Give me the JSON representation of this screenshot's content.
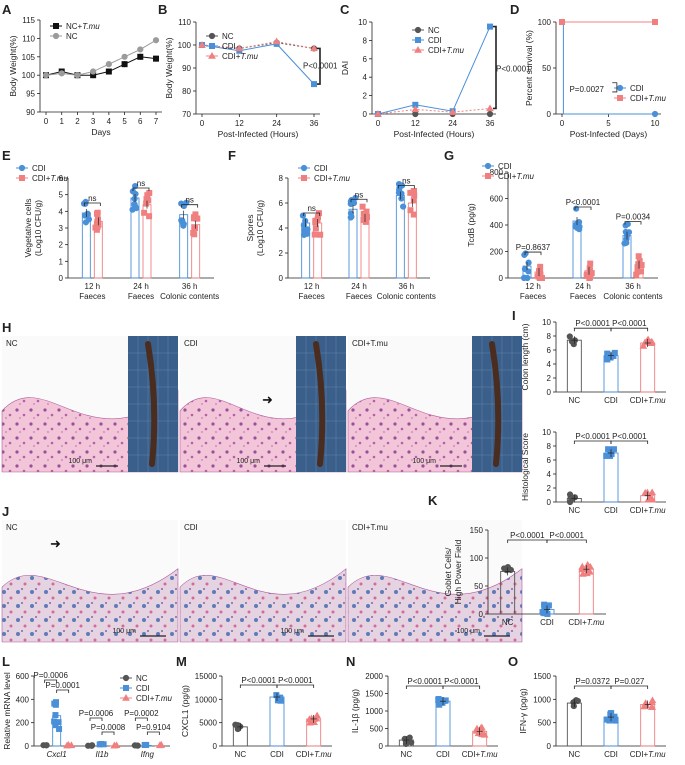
{
  "colors": {
    "nc": "#555555",
    "nc_light": "#9b9b9b",
    "cdi": "#4a90d9",
    "tmu": "#f08080",
    "pval": "#1a1a1a"
  },
  "panels": {
    "A": {
      "letter": "A",
      "ylabel": "Body Weight(%)",
      "xlabel": "Days",
      "legend": [
        "NC+T.mu",
        "NC"
      ],
      "chart_data": {
        "type": "line",
        "x": [
          0,
          1,
          2,
          3,
          4,
          5,
          6,
          7
        ],
        "ylim": [
          90,
          115
        ],
        "yticks": [
          "90",
          "95",
          "100",
          "105",
          "110",
          "115"
        ],
        "xticks": [
          "0",
          "1",
          "2",
          "3",
          "4",
          "5",
          "6",
          "7"
        ],
        "series": [
          {
            "name": "NC+T.mu",
            "values": [
              100,
              101,
              100,
              100,
              101,
              103,
              105,
              104.5
            ]
          },
          {
            "name": "NC",
            "values": [
              100,
              100.5,
              100,
              101,
              103,
              105,
              107,
              109.5
            ]
          }
        ]
      }
    },
    "B": {
      "letter": "B",
      "ylabel": "Body Weight(%)",
      "xlabel": "Post-Infected (Hours)",
      "legend": [
        "NC",
        "CDI",
        "CDI+T.mu"
      ],
      "pvalue": "P<0.0001",
      "chart_data": {
        "type": "line",
        "x": [
          0,
          12,
          24,
          36
        ],
        "ylim": [
          70,
          110
        ],
        "yticks": [
          "70",
          "80",
          "90",
          "100",
          "110"
        ],
        "xticks": [
          "0",
          "12",
          "24",
          "36"
        ],
        "series": [
          {
            "name": "NC",
            "values": [
              100,
              98.5,
              101,
              98.5
            ]
          },
          {
            "name": "CDI",
            "values": [
              100,
              97.5,
              100.5,
              83
            ]
          },
          {
            "name": "CDI+T.mu",
            "values": [
              100,
              98.5,
              101.5,
              98.5
            ]
          }
        ]
      }
    },
    "C": {
      "letter": "C",
      "ylabel": "DAI",
      "xlabel": "Post-Infected (Hours)",
      "legend": [
        "NC",
        "CDI",
        "CDI+T.mu"
      ],
      "pvalue": "P<0.0001",
      "chart_data": {
        "type": "line",
        "x": [
          0,
          12,
          24,
          36
        ],
        "ylim": [
          0,
          10
        ],
        "yticks": [
          "0",
          "2",
          "4",
          "6",
          "8",
          "10"
        ],
        "xticks": [
          "0",
          "12",
          "24",
          "36"
        ],
        "series": [
          {
            "name": "NC",
            "values": [
              0,
              0,
              0,
              0
            ]
          },
          {
            "name": "CDI",
            "values": [
              0,
              1,
              0.3,
              9.5
            ]
          },
          {
            "name": "CDI+T.mu",
            "values": [
              0,
              0.5,
              0.2,
              0.6
            ]
          }
        ]
      }
    },
    "D": {
      "letter": "D",
      "ylabel": "Percent survival (%)",
      "xlabel": "Post-Infected (Days)",
      "legend": [
        "CDI",
        "CDI+T.mu"
      ],
      "pvalue": "P=0.0027",
      "chart_data": {
        "type": "line",
        "ylim": [
          0,
          100
        ],
        "xlim": [
          0,
          10
        ],
        "yticks": [
          "0",
          "50",
          "100"
        ],
        "xticks": [
          "0",
          "5",
          "10"
        ],
        "series": [
          {
            "name": "CDI",
            "x": [
              0,
              0.15,
              0.15,
              10
            ],
            "values": [
              100,
              100,
              0,
              0
            ]
          },
          {
            "name": "CDI+T.mu",
            "x": [
              0,
              10
            ],
            "values": [
              100,
              100
            ]
          }
        ]
      }
    },
    "E": {
      "letter": "E",
      "ylabel": "Vegetative cells",
      "ylabel2": "(Log10 CFU/g)",
      "legend": [
        "CDI",
        "CDI+T.mu"
      ],
      "groups": [
        "12 h",
        "24 h",
        "36 h"
      ],
      "groups2": [
        "Faeces",
        "Faeces",
        "Colonic contents"
      ],
      "pvalues": [
        "ns",
        "ns",
        "ns"
      ],
      "chart_data": {
        "type": "bar",
        "ylim": [
          0,
          6
        ],
        "yticks": [
          "0",
          "1",
          "2",
          "3",
          "4",
          "5",
          "6"
        ],
        "series": [
          {
            "name": "CDI",
            "values": [
              3.9,
              4.8,
              3.8
            ]
          },
          {
            "name": "CDI+T.mu",
            "values": [
              3.4,
              4.4,
              3.2
            ]
          }
        ]
      }
    },
    "F": {
      "letter": "F",
      "ylabel": "Spores",
      "ylabel2": "(Log10 CFU/g)",
      "legend": [
        "CDI",
        "CDI+T.mu"
      ],
      "groups": [
        "12 h",
        "24 h",
        "36 h"
      ],
      "groups2": [
        "Faeces",
        "Faeces",
        "Colonic contents"
      ],
      "pvalues": [
        "ns",
        "ns",
        "ns"
      ],
      "chart_data": {
        "type": "bar",
        "ylim": [
          0,
          8
        ],
        "yticks": [
          "0",
          "2",
          "4",
          "6",
          "8"
        ],
        "series": [
          {
            "name": "CDI",
            "values": [
              4.4,
              5.5,
              6.6
            ]
          },
          {
            "name": "CDI+T.mu",
            "values": [
              4.4,
              4.8,
              6.0
            ]
          }
        ]
      }
    },
    "G": {
      "letter": "G",
      "ylabel": "TcdB (pg/g)",
      "legend": [
        "CDI",
        "CDI+T.mu"
      ],
      "groups": [
        "12 h",
        "24 h",
        "36 h"
      ],
      "groups2": [
        "Faeces",
        "Faeces",
        "Colonic contents"
      ],
      "pvalues": [
        "P=0.8637",
        "P<0.0001",
        "P=0.0034"
      ],
      "chart_data": {
        "type": "bar",
        "ylim": [
          0,
          800
        ],
        "yticks": [
          "0",
          "200",
          "400",
          "600",
          "800"
        ],
        "series": [
          {
            "name": "CDI",
            "values": [
              90,
              430,
              320
            ]
          },
          {
            "name": "CDI+T.mu",
            "values": [
              45,
              55,
              100
            ]
          }
        ]
      }
    },
    "H": {
      "letter": "H",
      "labels": [
        "NC",
        "CDI",
        "CDI+T.mu"
      ],
      "scale": "100 μm"
    },
    "I": {
      "letter": "I",
      "top": {
        "ylabel": "Colon length (cm)",
        "pvalues": [
          "P<0.0001",
          "P<0.0001"
        ],
        "chart_data": {
          "type": "bar",
          "categories": [
            "NC",
            "CDI",
            "CDI+T.mu"
          ],
          "ylim": [
            0,
            10
          ],
          "yticks": [
            "0",
            "2",
            "4",
            "6",
            "8",
            "10"
          ],
          "values": [
            7.4,
            5.2,
            7.0
          ]
        }
      },
      "bottom": {
        "ylabel": "Histological Score",
        "pvalues": [
          "P<0.0001",
          "P<0.0001"
        ],
        "chart_data": {
          "type": "bar",
          "categories": [
            "NC",
            "CDI",
            "CDI+T.mu"
          ],
          "ylim": [
            0,
            10
          ],
          "yticks": [
            "0",
            "2",
            "4",
            "6",
            "8",
            "10"
          ],
          "values": [
            0.5,
            7.0,
            0.9
          ]
        }
      }
    },
    "J": {
      "letter": "J",
      "labels": [
        "NC",
        "CDI",
        "CDI+T.mu"
      ],
      "scale": "100 μm"
    },
    "K": {
      "letter": "K",
      "ylabel": "Goblet Cells/",
      "ylabel2": "High Power Field",
      "pvalues": [
        "P<0.0001",
        "P<0.0001"
      ],
      "chart_data": {
        "type": "bar",
        "categories": [
          "NC",
          "CDI",
          "CDI+T.mu"
        ],
        "ylim": [
          0,
          150
        ],
        "yticks": [
          "0",
          "50",
          "100",
          "150"
        ],
        "values": [
          76,
          8,
          80
        ]
      }
    },
    "L": {
      "letter": "L",
      "ylabel": "Relative mRNA level",
      "legend": [
        "NC",
        "CDI",
        "CDI+T.mu"
      ],
      "groups": [
        "Cxcl1",
        "Il1b",
        "Ifng"
      ],
      "pvalues": [
        "P=0.0006",
        "P=0.0001",
        "P=0.0006",
        "P=0.0008",
        "P=0.0002",
        "P=0.9104"
      ],
      "chart_data": {
        "type": "bar",
        "ylim": [
          0,
          600
        ],
        "yticks": [
          "0",
          "200",
          "400",
          "600"
        ],
        "series": [
          {
            "name": "NC",
            "values": [
              1,
              1,
              1
            ]
          },
          {
            "name": "CDI",
            "values": [
              260,
              12,
              5
            ]
          },
          {
            "name": "CDI+T.mu",
            "values": [
              3,
              2,
              4
            ]
          }
        ]
      }
    },
    "M": {
      "letter": "M",
      "ylabel": "CXCL1 (pg/g)",
      "pvalues": [
        "P<0.0001",
        "P<0.0001"
      ],
      "chart_data": {
        "type": "bar",
        "categories": [
          "NC",
          "CDI",
          "CDI+T.mu"
        ],
        "ylim": [
          0,
          15000
        ],
        "yticks": [
          "0",
          "5000",
          "10000",
          "15000"
        ],
        "values": [
          4100,
          10500,
          5800
        ]
      }
    },
    "N": {
      "letter": "N",
      "ylabel": "IL-1β (pg/g)",
      "pvalues": [
        "P<0.0001",
        "P<0.0001"
      ],
      "chart_data": {
        "type": "bar",
        "categories": [
          "NC",
          "CDI",
          "CDI+T.mu"
        ],
        "ylim": [
          0,
          2000
        ],
        "yticks": [
          "0",
          "500",
          "1000",
          "1500",
          "2000"
        ],
        "values": [
          170,
          1280,
          420
        ]
      }
    },
    "O": {
      "letter": "O",
      "ylabel": "IFN-γ (pg/g)",
      "pvalues": [
        "P=0.0372",
        "P=0.027"
      ],
      "chart_data": {
        "type": "bar",
        "categories": [
          "NC",
          "CDI",
          "CDI+T.mu"
        ],
        "ylim": [
          0,
          1500
        ],
        "yticks": [
          "0",
          "500",
          "1000",
          "1500"
        ],
        "values": [
          920,
          620,
          890
        ]
      }
    }
  }
}
